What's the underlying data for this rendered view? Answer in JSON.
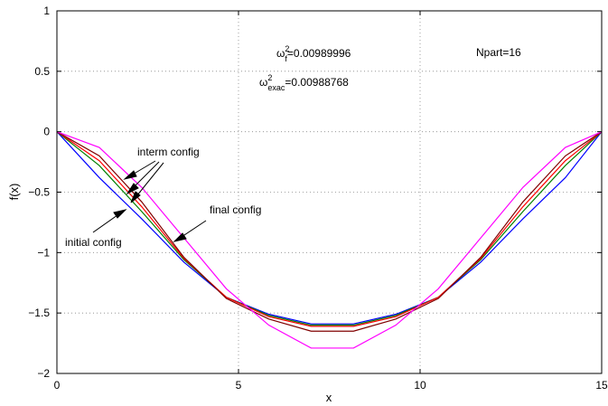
{
  "chart_data": {
    "type": "line",
    "title": "",
    "xlabel": "x",
    "ylabel": "f(x)",
    "xlim": [
      0,
      15
    ],
    "ylim": [
      -2,
      1
    ],
    "xticks": [
      0,
      5,
      10,
      15
    ],
    "xtick_labels": [
      "0",
      "5",
      "10",
      "15"
    ],
    "yticks": [
      1,
      0.5,
      0,
      -0.5,
      -1,
      -1.5,
      -2
    ],
    "ytick_labels": [
      "1",
      "0.5",
      "0",
      "−0.5",
      "−1",
      "−1.5",
      "−2"
    ],
    "grid": true,
    "x": [
      0,
      1.1667,
      2.3333,
      3.5,
      4.6667,
      5.8333,
      7.0,
      8.1667,
      9.3333,
      10.5,
      11.6667,
      12.8333,
      14.0,
      15.0
    ],
    "series": [
      {
        "color": "#0000ff",
        "values": [
          0,
          -0.38,
          -0.72,
          -1.08,
          -1.37,
          -1.51,
          -1.59,
          -1.59,
          -1.51,
          -1.37,
          -1.08,
          -0.72,
          -0.38,
          0
        ]
      },
      {
        "color": "#008000",
        "values": [
          0,
          -0.28,
          -0.66,
          -1.06,
          -1.37,
          -1.52,
          -1.6,
          -1.6,
          -1.52,
          -1.37,
          -1.06,
          -0.66,
          -0.28,
          0
        ]
      },
      {
        "color": "#ff0000",
        "values": [
          0,
          -0.24,
          -0.62,
          -1.05,
          -1.37,
          -1.53,
          -1.61,
          -1.61,
          -1.53,
          -1.37,
          -1.05,
          -0.62,
          -0.24,
          0
        ]
      },
      {
        "color": "#800000",
        "values": [
          0,
          -0.2,
          -0.58,
          -1.04,
          -1.38,
          -1.55,
          -1.65,
          -1.65,
          -1.55,
          -1.38,
          -1.04,
          -0.58,
          -0.2,
          0
        ]
      },
      {
        "color": "#ff00ff",
        "values": [
          0,
          -0.13,
          -0.46,
          -0.88,
          -1.3,
          -1.6,
          -1.79,
          -1.79,
          -1.6,
          -1.3,
          -0.88,
          -0.46,
          -0.13,
          0
        ]
      }
    ],
    "annotations": {
      "omega_f": {
        "base": "ω",
        "sup": "2",
        "sub": "f",
        "value": "=0.00989996"
      },
      "omega_exac": {
        "base": "ω",
        "sup": "2",
        "sub": "exac",
        "value": "=0.00988768"
      },
      "npart": "Npart=16",
      "interm": "interm config",
      "final": "final config",
      "initial": "initial config"
    }
  }
}
